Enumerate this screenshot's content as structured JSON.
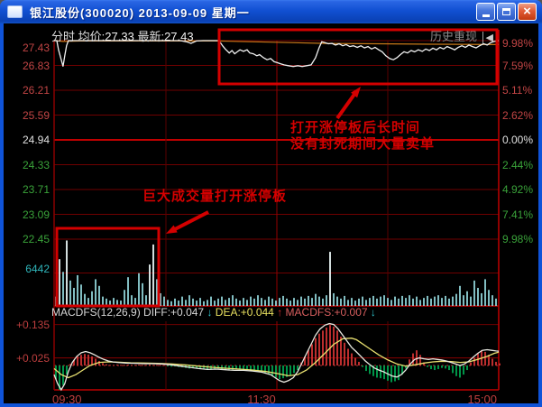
{
  "window": {
    "title": "银江股份(300020) 2013-09-09 星期一"
  },
  "icons": {
    "close_icon": "×",
    "history_rewind_icon": "│◀"
  },
  "header": {
    "mode_label": "分时",
    "avg_label": "均价:",
    "avg_value": "27.33",
    "last_label": "最新:",
    "last_value": "27.43",
    "history_replay": "历史重现"
  },
  "indicator": {
    "name": "MACDFS(12,26,9)",
    "diff_label": "DIFF:",
    "diff_value": "+0.047",
    "diff_arrow": "↓",
    "dea_label": "DEA:",
    "dea_value": "+0.044",
    "dea_arrow": "↑",
    "macd_label": "MACDFS:",
    "macd_value": "+0.007",
    "macd_arrow": "↓"
  },
  "annotations": {
    "box1_line1": "打开涨停板后长时间",
    "box1_line2": "没有封死期间大量卖单",
    "box2_text": "巨大成交量打开涨停板"
  },
  "axes": {
    "price_left": [
      [
        "27.43",
        "up"
      ],
      [
        "26.83",
        "up"
      ],
      [
        "26.21",
        "up"
      ],
      [
        "25.59",
        "up"
      ],
      [
        "24.94",
        "flat"
      ],
      [
        "24.33",
        "down"
      ],
      [
        "23.71",
        "down"
      ],
      [
        "23.09",
        "down"
      ],
      [
        "22.45",
        "down"
      ]
    ],
    "percent_right": [
      [
        "9.98%",
        "up"
      ],
      [
        "7.59%",
        "up"
      ],
      [
        "5.11%",
        "up"
      ],
      [
        "2.62%",
        "up"
      ],
      [
        "0.00%",
        "flat"
      ],
      [
        "2.44%",
        "down"
      ],
      [
        "4.92%",
        "down"
      ],
      [
        "7.41%",
        "down"
      ],
      [
        "9.98%",
        "down"
      ]
    ],
    "volume_tick": "6442",
    "macd_ticks": [
      "+0.135",
      "+0.025"
    ],
    "time": [
      "09:30",
      "11:30",
      "15:00"
    ]
  },
  "colors": {
    "up": "#c24545",
    "down": "#3aa33a",
    "flat": "#e0e0e0",
    "grid": "#6f0000",
    "grid_dim": "#5a0000",
    "grid_bright": "#c00000",
    "grid_mid": "#930000",
    "price_line": "#f0f0f0",
    "avg_line": "#c87818",
    "bar": "#8fd2d6",
    "bar_big": "#eaf7f7",
    "hist_up": "#d03434",
    "hist_down": "#00a550",
    "diff_line": "#e8e8e0",
    "dea_line": "#e8e070",
    "annotation": "#d40000"
  },
  "chart_data": {
    "type": "line",
    "title": "分时 intraday chart with volume and MACDFS(12,26,9)",
    "x_axis": {
      "labels": [
        "09:30",
        "11:30",
        "15:00"
      ]
    },
    "price_axis": {
      "max": 27.43,
      "min": 22.45,
      "prev_close": 24.94,
      "ticks_left": [
        "27.43",
        "26.83",
        "26.21",
        "25.59",
        "24.94",
        "24.33",
        "23.71",
        "23.09",
        "22.45"
      ],
      "ticks_right_percent": [
        "9.98%",
        "7.59%",
        "5.11%",
        "2.62%",
        "0.00%",
        "2.44%",
        "4.92%",
        "7.41%",
        "9.98%"
      ]
    },
    "series": [
      {
        "name": "price",
        "points": [
          [
            0,
            27.43
          ],
          [
            0.006,
            27.43
          ],
          [
            0.01,
            27.2
          ],
          [
            0.016,
            26.95
          ],
          [
            0.02,
            26.78
          ],
          [
            0.024,
            27.05
          ],
          [
            0.028,
            27.3
          ],
          [
            0.032,
            27.43
          ],
          [
            0.08,
            27.43
          ],
          [
            0.18,
            27.43
          ],
          [
            0.284,
            27.43
          ],
          [
            0.298,
            27.4
          ],
          [
            0.308,
            27.36
          ],
          [
            0.32,
            27.42
          ],
          [
            0.335,
            27.43
          ],
          [
            0.371,
            27.43
          ],
          [
            0.379,
            27.3
          ],
          [
            0.385,
            27.22
          ],
          [
            0.394,
            27.12
          ],
          [
            0.4,
            27.18
          ],
          [
            0.406,
            27.1
          ],
          [
            0.412,
            27.15
          ],
          [
            0.418,
            27.2
          ],
          [
            0.426,
            27.16
          ],
          [
            0.434,
            27.2
          ],
          [
            0.44,
            27.12
          ],
          [
            0.448,
            27.1
          ],
          [
            0.456,
            27.05
          ],
          [
            0.462,
            27.08
          ],
          [
            0.471,
            27.0
          ],
          [
            0.479,
            26.95
          ],
          [
            0.487,
            26.98
          ],
          [
            0.495,
            26.9
          ],
          [
            0.501,
            26.88
          ],
          [
            0.509,
            26.85
          ],
          [
            0.517,
            26.82
          ],
          [
            0.527,
            26.8
          ],
          [
            0.538,
            26.78
          ],
          [
            0.548,
            26.8
          ],
          [
            0.558,
            26.78
          ],
          [
            0.568,
            26.8
          ],
          [
            0.578,
            26.82
          ],
          [
            0.588,
            27.0
          ],
          [
            0.596,
            27.25
          ],
          [
            0.602,
            27.4
          ],
          [
            0.609,
            27.38
          ],
          [
            0.617,
            27.35
          ],
          [
            0.625,
            27.36
          ],
          [
            0.633,
            27.32
          ],
          [
            0.641,
            27.35
          ],
          [
            0.649,
            27.3
          ],
          [
            0.657,
            27.33
          ],
          [
            0.665,
            27.28
          ],
          [
            0.673,
            27.3
          ],
          [
            0.682,
            27.26
          ],
          [
            0.69,
            27.3
          ],
          [
            0.698,
            27.25
          ],
          [
            0.706,
            27.28
          ],
          [
            0.714,
            27.22
          ],
          [
            0.722,
            27.26
          ],
          [
            0.73,
            27.2
          ],
          [
            0.738,
            27.15
          ],
          [
            0.746,
            27.05
          ],
          [
            0.755,
            26.98
          ],
          [
            0.763,
            26.95
          ],
          [
            0.771,
            27.0
          ],
          [
            0.779,
            27.08
          ],
          [
            0.787,
            27.15
          ],
          [
            0.795,
            27.12
          ],
          [
            0.803,
            27.18
          ],
          [
            0.811,
            27.15
          ],
          [
            0.819,
            27.2
          ],
          [
            0.828,
            27.16
          ],
          [
            0.836,
            27.22
          ],
          [
            0.844,
            27.18
          ],
          [
            0.852,
            27.24
          ],
          [
            0.86,
            27.2
          ],
          [
            0.868,
            27.26
          ],
          [
            0.876,
            27.22
          ],
          [
            0.884,
            27.28
          ],
          [
            0.893,
            27.24
          ],
          [
            0.901,
            27.2
          ],
          [
            0.909,
            27.26
          ],
          [
            0.917,
            27.3
          ],
          [
            0.925,
            27.26
          ],
          [
            0.933,
            27.32
          ],
          [
            0.941,
            27.28
          ],
          [
            0.949,
            27.25
          ],
          [
            0.957,
            27.3
          ],
          [
            0.966,
            27.35
          ],
          [
            0.974,
            27.32
          ],
          [
            0.982,
            27.38
          ],
          [
            0.99,
            27.41
          ],
          [
            1,
            27.43
          ]
        ]
      },
      {
        "name": "avg_price",
        "points": [
          [
            0,
            27.43
          ],
          [
            0.02,
            27.41
          ],
          [
            0.06,
            27.42
          ],
          [
            0.18,
            27.42
          ],
          [
            0.37,
            27.42
          ],
          [
            0.45,
            27.4
          ],
          [
            0.53,
            27.38
          ],
          [
            0.61,
            27.36
          ],
          [
            0.73,
            27.35
          ],
          [
            0.85,
            27.34
          ],
          [
            1,
            27.33
          ]
        ]
      }
    ],
    "volume": {
      "type": "bar",
      "axis_tick": "6442",
      "heights_pct": [
        14,
        70,
        51,
        98,
        38,
        27,
        46,
        32,
        18,
        12,
        22,
        40,
        30,
        14,
        11,
        8,
        12,
        9,
        8,
        24,
        43,
        16,
        12,
        49,
        34,
        16,
        62,
        92,
        40,
        19,
        14,
        9,
        7,
        11,
        8,
        14,
        9,
        16,
        11,
        8,
        12,
        7,
        9,
        14,
        8,
        11,
        14,
        9,
        12,
        16,
        11,
        8,
        12,
        9,
        14,
        11,
        16,
        12,
        9,
        14,
        11,
        8,
        12,
        15,
        11,
        8,
        12,
        9,
        14,
        11,
        15,
        12,
        18,
        14,
        11,
        16,
        81,
        19,
        14,
        11,
        15,
        9,
        12,
        8,
        11,
        14,
        9,
        12,
        15,
        11,
        14,
        16,
        12,
        9,
        14,
        11,
        15,
        12,
        16,
        11,
        14,
        9,
        12,
        15,
        11,
        14,
        16,
        12,
        15,
        11,
        14,
        18,
        30,
        16,
        22,
        14,
        38,
        27,
        19,
        40,
        24,
        16,
        11
      ]
    },
    "macd": {
      "type": "bar+line",
      "params": "12,26,9",
      "ticks": [
        "+0.135",
        "+0.025"
      ],
      "units": "milli (value x 1000)",
      "hist": [
        -45,
        -80,
        -65,
        -30,
        5,
        18,
        30,
        35,
        38,
        36,
        30,
        22,
        15,
        8,
        4,
        2,
        2,
        3,
        2,
        2,
        3,
        2,
        2,
        3,
        2,
        2,
        3,
        2,
        2,
        2,
        2,
        -2,
        -4,
        -3,
        -5,
        -6,
        -8,
        -10,
        -8,
        -10,
        -12,
        -10,
        -12,
        -14,
        -12,
        -10,
        -12,
        -14,
        -16,
        -14,
        -12,
        -14,
        -12,
        -14,
        -16,
        -18,
        -20,
        -22,
        -25,
        -30,
        -35,
        -40,
        -45,
        -42,
        -38,
        -32,
        -25,
        -15,
        10,
        30,
        50,
        70,
        90,
        105,
        115,
        125,
        133,
        128,
        115,
        95,
        75,
        55,
        40,
        25,
        12,
        -5,
        -18,
        -28,
        -35,
        -40,
        -42,
        -45,
        -50,
        -55,
        -52,
        -48,
        -30,
        -10,
        20,
        40,
        50,
        35,
        10,
        -5,
        -12,
        -15,
        -12,
        -8,
        -10,
        -15,
        -25,
        -35,
        -40,
        -30,
        -15,
        10,
        25,
        40,
        50,
        45,
        35,
        22,
        12,
        7
      ],
      "diff": [
        [
          0,
          -30
        ],
        [
          0.008,
          -60
        ],
        [
          0.016,
          -85
        ],
        [
          0.024,
          -60
        ],
        [
          0.032,
          -20
        ],
        [
          0.041,
          10
        ],
        [
          0.051,
          30
        ],
        [
          0.061,
          42
        ],
        [
          0.071,
          46
        ],
        [
          0.081,
          42
        ],
        [
          0.091,
          35
        ],
        [
          0.101,
          27
        ],
        [
          0.112,
          20
        ],
        [
          0.122,
          15
        ],
        [
          0.132,
          12
        ],
        [
          0.142,
          10
        ],
        [
          0.162,
          8
        ],
        [
          0.183,
          7
        ],
        [
          0.203,
          6
        ],
        [
          0.223,
          6
        ],
        [
          0.243,
          5
        ],
        [
          0.264,
          2
        ],
        [
          0.284,
          -2
        ],
        [
          0.304,
          -6
        ],
        [
          0.325,
          -10
        ],
        [
          0.345,
          -13
        ],
        [
          0.365,
          -12
        ],
        [
          0.385,
          -14
        ],
        [
          0.406,
          -16
        ],
        [
          0.426,
          -16
        ],
        [
          0.446,
          -18
        ],
        [
          0.467,
          -22
        ],
        [
          0.487,
          -30
        ],
        [
          0.497,
          -40
        ],
        [
          0.507,
          -50
        ],
        [
          0.517,
          -55
        ],
        [
          0.527,
          -50
        ],
        [
          0.538,
          -40
        ],
        [
          0.548,
          -20
        ],
        [
          0.558,
          10
        ],
        [
          0.568,
          40
        ],
        [
          0.578,
          70
        ],
        [
          0.588,
          100
        ],
        [
          0.598,
          120
        ],
        [
          0.609,
          133
        ],
        [
          0.619,
          138
        ],
        [
          0.629,
          135
        ],
        [
          0.639,
          120
        ],
        [
          0.649,
          100
        ],
        [
          0.659,
          80
        ],
        [
          0.669,
          60
        ],
        [
          0.68,
          45
        ],
        [
          0.69,
          30
        ],
        [
          0.7,
          15
        ],
        [
          0.71,
          3
        ],
        [
          0.72,
          -8
        ],
        [
          0.73,
          -15
        ],
        [
          0.74,
          -20
        ],
        [
          0.751,
          -28
        ],
        [
          0.761,
          -35
        ],
        [
          0.771,
          -38
        ],
        [
          0.781,
          -30
        ],
        [
          0.791,
          -15
        ],
        [
          0.801,
          5
        ],
        [
          0.811,
          20
        ],
        [
          0.821,
          25
        ],
        [
          0.832,
          22
        ],
        [
          0.842,
          20
        ],
        [
          0.852,
          22
        ],
        [
          0.862,
          20
        ],
        [
          0.872,
          18
        ],
        [
          0.882,
          15
        ],
        [
          0.893,
          10
        ],
        [
          0.903,
          5
        ],
        [
          0.913,
          0
        ],
        [
          0.923,
          5
        ],
        [
          0.933,
          15
        ],
        [
          0.943,
          28
        ],
        [
          0.953,
          40
        ],
        [
          0.963,
          50
        ],
        [
          0.974,
          52
        ],
        [
          0.984,
          50
        ],
        [
          0.994,
          48
        ],
        [
          1,
          47
        ]
      ],
      "dea": [
        [
          0,
          -10
        ],
        [
          0.016,
          -30
        ],
        [
          0.032,
          -40
        ],
        [
          0.049,
          -30
        ],
        [
          0.065,
          -15
        ],
        [
          0.081,
          0
        ],
        [
          0.101,
          10
        ],
        [
          0.122,
          12
        ],
        [
          0.142,
          11
        ],
        [
          0.172,
          9
        ],
        [
          0.203,
          8
        ],
        [
          0.233,
          7
        ],
        [
          0.264,
          5
        ],
        [
          0.294,
          2
        ],
        [
          0.325,
          -2
        ],
        [
          0.355,
          -6
        ],
        [
          0.385,
          -9
        ],
        [
          0.416,
          -12
        ],
        [
          0.446,
          -15
        ],
        [
          0.477,
          -20
        ],
        [
          0.507,
          -28
        ],
        [
          0.527,
          -34
        ],
        [
          0.548,
          -30
        ],
        [
          0.568,
          -15
        ],
        [
          0.588,
          10
        ],
        [
          0.609,
          40
        ],
        [
          0.629,
          70
        ],
        [
          0.649,
          88
        ],
        [
          0.669,
          90
        ],
        [
          0.68,
          85
        ],
        [
          0.69,
          75
        ],
        [
          0.71,
          55
        ],
        [
          0.73,
          35
        ],
        [
          0.751,
          18
        ],
        [
          0.771,
          5
        ],
        [
          0.791,
          -2
        ],
        [
          0.811,
          2
        ],
        [
          0.832,
          8
        ],
        [
          0.852,
          12
        ],
        [
          0.872,
          14
        ],
        [
          0.893,
          13
        ],
        [
          0.913,
          10
        ],
        [
          0.933,
          12
        ],
        [
          0.953,
          20
        ],
        [
          0.974,
          30
        ],
        [
          0.99,
          40
        ],
        [
          1,
          44
        ]
      ]
    }
  }
}
